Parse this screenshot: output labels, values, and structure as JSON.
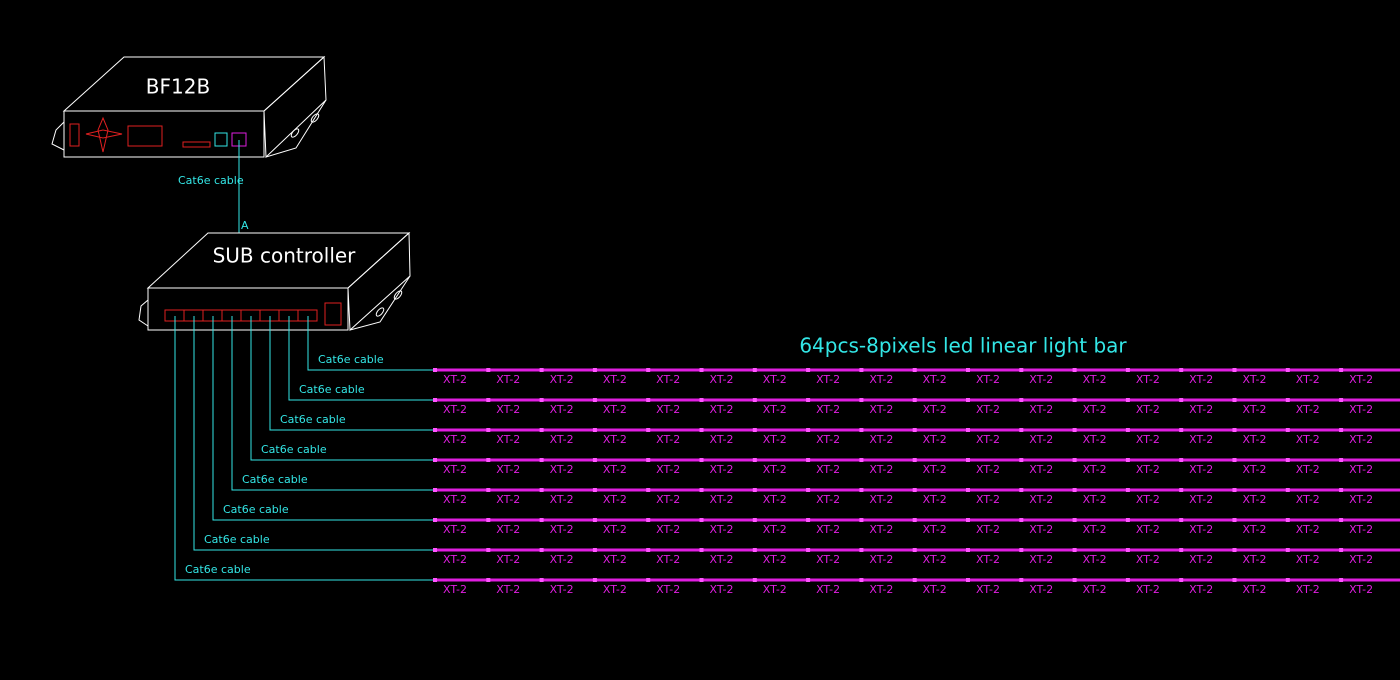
{
  "controller": {
    "label": "BF12B"
  },
  "link": {
    "cable": "Cat6e cable",
    "port": "A"
  },
  "sub_controller": {
    "label": "SUB controller"
  },
  "light_bar": {
    "title": "64pcs-8pixels led linear light bar"
  },
  "rows": [
    {
      "cable": "Cat6e cable",
      "bars": [
        "XT-2",
        "XT-2",
        "XT-2",
        "XT-2",
        "XT-2",
        "XT-2",
        "XT-2",
        "XT-2",
        "XT-2",
        "XT-2",
        "XT-2",
        "XT-2",
        "XT-2",
        "XT-2",
        "XT-2",
        "XT-2",
        "XT-2",
        "XT-2"
      ]
    },
    {
      "cable": "Cat6e cable",
      "bars": [
        "XT-2",
        "XT-2",
        "XT-2",
        "XT-2",
        "XT-2",
        "XT-2",
        "XT-2",
        "XT-2",
        "XT-2",
        "XT-2",
        "XT-2",
        "XT-2",
        "XT-2",
        "XT-2",
        "XT-2",
        "XT-2",
        "XT-2",
        "XT-2"
      ]
    },
    {
      "cable": "Cat6e cable",
      "bars": [
        "XT-2",
        "XT-2",
        "XT-2",
        "XT-2",
        "XT-2",
        "XT-2",
        "XT-2",
        "XT-2",
        "XT-2",
        "XT-2",
        "XT-2",
        "XT-2",
        "XT-2",
        "XT-2",
        "XT-2",
        "XT-2",
        "XT-2",
        "XT-2"
      ]
    },
    {
      "cable": "Cat6e cable",
      "bars": [
        "XT-2",
        "XT-2",
        "XT-2",
        "XT-2",
        "XT-2",
        "XT-2",
        "XT-2",
        "XT-2",
        "XT-2",
        "XT-2",
        "XT-2",
        "XT-2",
        "XT-2",
        "XT-2",
        "XT-2",
        "XT-2",
        "XT-2",
        "XT-2"
      ]
    },
    {
      "cable": "Cat6e cable",
      "bars": [
        "XT-2",
        "XT-2",
        "XT-2",
        "XT-2",
        "XT-2",
        "XT-2",
        "XT-2",
        "XT-2",
        "XT-2",
        "XT-2",
        "XT-2",
        "XT-2",
        "XT-2",
        "XT-2",
        "XT-2",
        "XT-2",
        "XT-2",
        "XT-2"
      ]
    },
    {
      "cable": "Cat6e cable",
      "bars": [
        "XT-2",
        "XT-2",
        "XT-2",
        "XT-2",
        "XT-2",
        "XT-2",
        "XT-2",
        "XT-2",
        "XT-2",
        "XT-2",
        "XT-2",
        "XT-2",
        "XT-2",
        "XT-2",
        "XT-2",
        "XT-2",
        "XT-2",
        "XT-2"
      ]
    },
    {
      "cable": "Cat6e cable",
      "bars": [
        "XT-2",
        "XT-2",
        "XT-2",
        "XT-2",
        "XT-2",
        "XT-2",
        "XT-2",
        "XT-2",
        "XT-2",
        "XT-2",
        "XT-2",
        "XT-2",
        "XT-2",
        "XT-2",
        "XT-2",
        "XT-2",
        "XT-2",
        "XT-2"
      ]
    },
    {
      "cable": "Cat6e cable",
      "bars": [
        "XT-2",
        "XT-2",
        "XT-2",
        "XT-2",
        "XT-2",
        "XT-2",
        "XT-2",
        "XT-2",
        "XT-2",
        "XT-2",
        "XT-2",
        "XT-2",
        "XT-2",
        "XT-2",
        "XT-2",
        "XT-2",
        "XT-2",
        "XT-2"
      ]
    }
  ]
}
